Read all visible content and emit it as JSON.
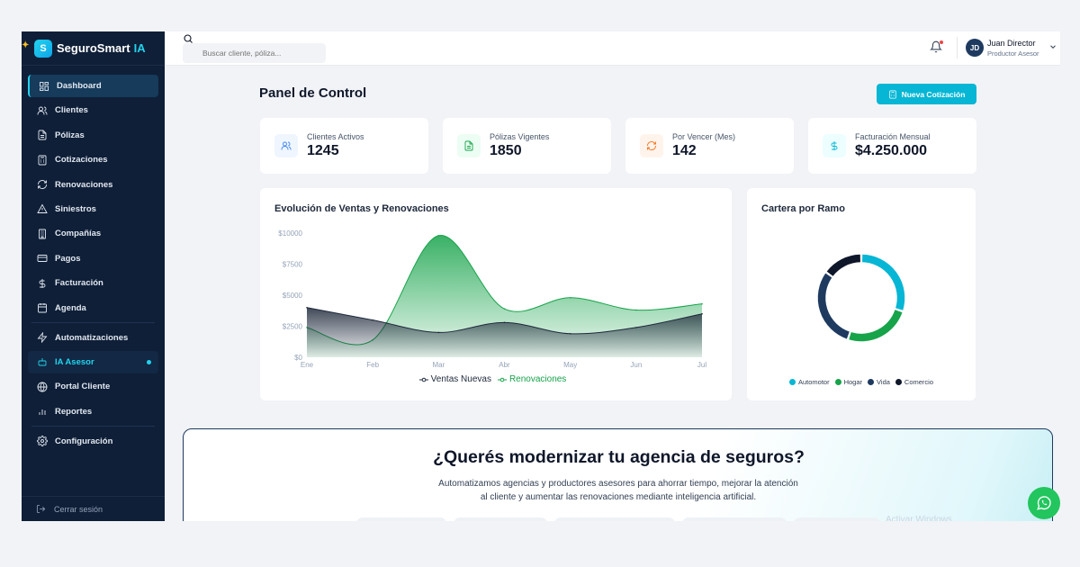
{
  "sidebar": {
    "brand": {
      "name": "SeguroSmart",
      "suffix": "IA"
    },
    "items": [
      {
        "label": "Dashboard",
        "icon": "dashboard-icon"
      },
      {
        "label": "Clientes",
        "icon": "users-icon"
      },
      {
        "label": "Pólizas",
        "icon": "document-icon"
      },
      {
        "label": "Cotizaciones",
        "icon": "calculator-icon"
      },
      {
        "label": "Renovaciones",
        "icon": "refresh-icon"
      },
      {
        "label": "Siniestros",
        "icon": "alert-triangle-icon"
      },
      {
        "label": "Compañías",
        "icon": "building-icon"
      },
      {
        "label": "Pagos",
        "icon": "credit-card-icon"
      },
      {
        "label": "Facturación",
        "icon": "dollar-icon"
      },
      {
        "label": "Agenda",
        "icon": "calendar-icon"
      },
      {
        "label": "Automatizaciones",
        "icon": "lightning-icon"
      },
      {
        "label": "IA Asesor",
        "icon": "robot-icon"
      },
      {
        "label": "Portal Cliente",
        "icon": "globe-icon"
      },
      {
        "label": "Reportes",
        "icon": "bar-chart-icon"
      },
      {
        "label": "Configuración",
        "icon": "gear-icon"
      }
    ],
    "logout": "Cerrar sesión"
  },
  "topbar": {
    "search_placeholder": "Buscar cliente, póliza...",
    "user": {
      "initials": "JD",
      "name": "Juan Director",
      "role": "Productor Asesor"
    }
  },
  "main": {
    "title": "Panel de Control",
    "new_button": "Nueva Cotización",
    "stats": [
      {
        "label": "Clientes Activos",
        "value": "1245",
        "icon": "users-icon",
        "color": "#3b82f6",
        "bg": "#eff6ff"
      },
      {
        "label": "Pólizas Vigentes",
        "value": "1850",
        "icon": "document-icon",
        "color": "#16a34a",
        "bg": "#ecfdf3"
      },
      {
        "label": "Por Vencer (Mes)",
        "value": "142",
        "icon": "refresh-icon",
        "color": "#f97316",
        "bg": "#fff4ec"
      },
      {
        "label": "Facturación Mensual",
        "value": "$4.250.000",
        "icon": "dollar-icon",
        "color": "#06b6d4",
        "bg": "#ecfeff"
      }
    ],
    "sales_chart_title": "Evolución de Ventas y Renovaciones",
    "portfolio_title": "Cartera por Ramo"
  },
  "chart_data": [
    {
      "type": "area",
      "title": "Evolución de Ventas y Renovaciones",
      "categories": [
        "Ene",
        "Feb",
        "Mar",
        "Abr",
        "May",
        "Jun",
        "Jul"
      ],
      "y_ticks": [
        "$0",
        "$2500",
        "$5000",
        "$7500",
        "$10000"
      ],
      "ylim": [
        0,
        10000
      ],
      "series": [
        {
          "name": "Ventas Nuevas",
          "values": [
            4000,
            3000,
            2000,
            2800,
            1900,
            2400,
            3500
          ],
          "color": "#1e293b"
        },
        {
          "name": "Renovaciones",
          "values": [
            2400,
            1400,
            9800,
            3900,
            4800,
            3800,
            4300
          ],
          "color": "#16a34a"
        }
      ],
      "legend": "bottom"
    },
    {
      "type": "pie",
      "title": "Cartera por Ramo",
      "categories": [
        "Automotor",
        "Hogar",
        "Vida",
        "Comercio"
      ],
      "values": [
        30,
        25,
        30,
        15
      ],
      "colors": [
        "#06b6d4",
        "#16a34a",
        "#1e3a5f",
        "#0f172a"
      ],
      "legend": "bottom"
    }
  ],
  "banner": {
    "title": "¿Querés modernizar tu agencia de seguros?",
    "text": "Automatizamos agencias y productores asesores para ahorrar tiempo, mejorar la atención al cliente y aumentar las renovaciones mediante inteligencia artificial.",
    "faded": "Activar Windows"
  }
}
